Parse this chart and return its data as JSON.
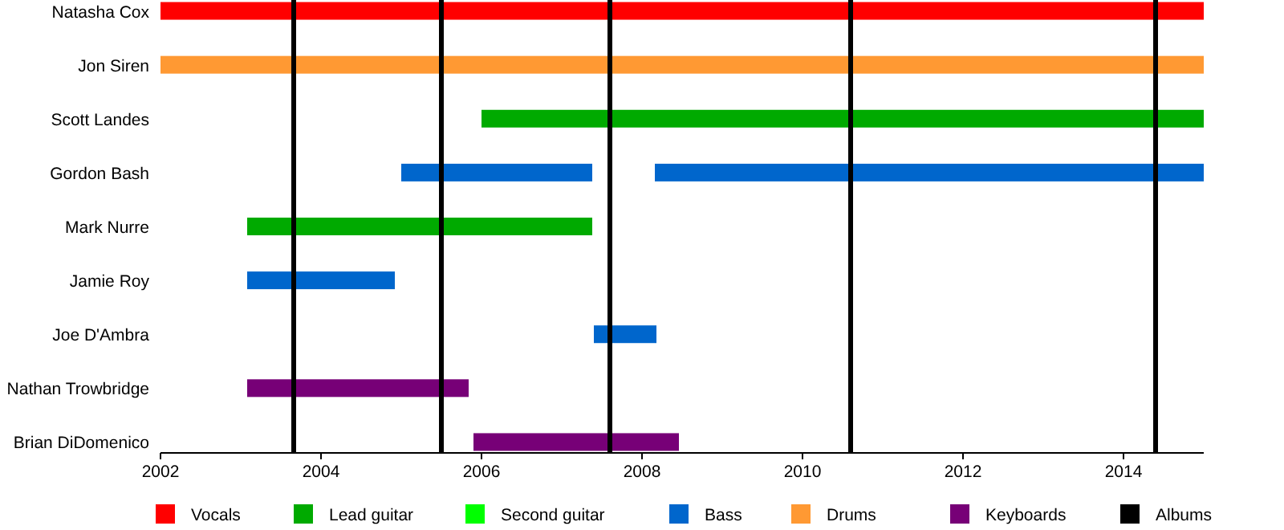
{
  "chart_data": {
    "type": "bar",
    "orientation": "horizontal",
    "legend": "bottom",
    "categories": [
      "Natasha Cox",
      "Jon Siren",
      "Scott Landes",
      "Gordon Bash",
      "Mark Nurre",
      "Jamie Roy",
      "Joe D'Ambra",
      "Nathan Trowbridge",
      "Brian DiDomenico"
    ],
    "xlim": [
      2002,
      2015
    ],
    "xticks": [
      2002,
      2004,
      2006,
      2008,
      2010,
      2012,
      2014
    ],
    "series": [
      {
        "name": "Vocals",
        "color": "#ff0000",
        "base": [
          2002,
          null,
          null,
          null,
          null,
          null,
          null,
          null,
          null
        ],
        "values": [
          13,
          null,
          null,
          null,
          null,
          null,
          null,
          null,
          null
        ]
      },
      {
        "name": "Lead guitar",
        "color": "#00aa00",
        "base": [
          null,
          null,
          2006,
          null,
          2003.08,
          null,
          null,
          null,
          null
        ],
        "values": [
          null,
          null,
          9,
          null,
          4.3,
          null,
          null,
          null,
          null
        ]
      },
      {
        "name": "Second guitar",
        "color": "#00ff00",
        "values": [
          null,
          null,
          null,
          null,
          null,
          null,
          null,
          null,
          null
        ]
      },
      {
        "name": "Bass",
        "color": "#0066cc",
        "base": [
          null,
          null,
          null,
          2005,
          null,
          2003.08,
          2007.4,
          null,
          null
        ],
        "values": [
          null,
          null,
          null,
          2.38,
          null,
          1.84,
          0.78,
          null,
          null
        ]
      },
      {
        "color": "#0066cc",
        "base": [
          null,
          null,
          null,
          2008.16,
          null,
          null,
          null,
          null,
          null
        ],
        "values": [
          null,
          null,
          null,
          6.84,
          null,
          null,
          null,
          null,
          null
        ]
      },
      {
        "name": "Drums",
        "color": "#ff9933",
        "base": [
          null,
          2002,
          null,
          null,
          null,
          null,
          null,
          null,
          null
        ],
        "values": [
          null,
          13,
          null,
          null,
          null,
          null,
          null,
          null,
          null
        ]
      },
      {
        "name": "Keyboards",
        "color": "#770077",
        "base": [
          null,
          null,
          null,
          null,
          null,
          null,
          null,
          2003.08,
          2005.9
        ],
        "values": [
          null,
          null,
          null,
          null,
          null,
          null,
          null,
          2.76,
          2.56
        ]
      }
    ],
    "ref_lines": [
      {
        "axis": "x",
        "value": 2003.66,
        "label": "Albums",
        "color": "#000000"
      },
      {
        "axis": "x",
        "value": 2005.5,
        "color": "#000000"
      },
      {
        "axis": "x",
        "value": 2007.6,
        "color": "#000000"
      },
      {
        "axis": "x",
        "value": 2010.6,
        "color": "#000000"
      },
      {
        "axis": "x",
        "value": 2014.4,
        "color": "#000000"
      }
    ]
  }
}
